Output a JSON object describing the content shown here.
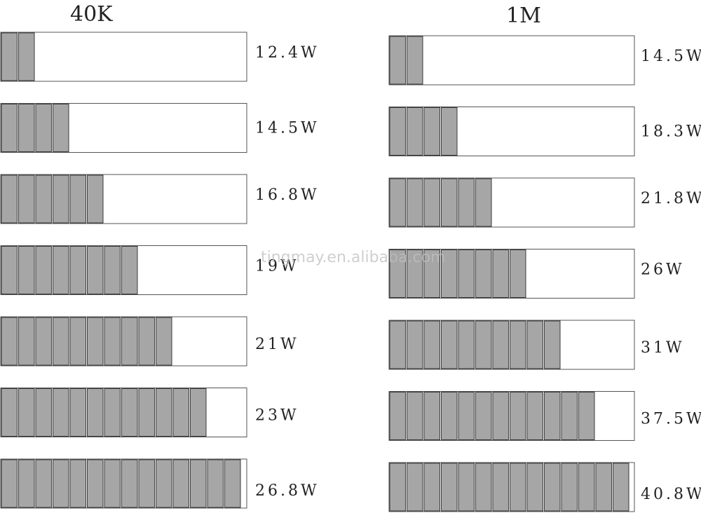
{
  "watermark": "tingmay.en.alibaba.com",
  "groups": [
    {
      "title": "40K",
      "rows": [
        {
          "label": "12.4W",
          "lit": 2,
          "total": 14
        },
        {
          "label": "14.5W",
          "lit": 4,
          "total": 14
        },
        {
          "label": "16.8W",
          "lit": 6,
          "total": 14
        },
        {
          "label": "19W",
          "lit": 8,
          "total": 14
        },
        {
          "label": "21W",
          "lit": 10,
          "total": 14
        },
        {
          "label": "23W",
          "lit": 12,
          "total": 14
        },
        {
          "label": "26.8W",
          "lit": 14,
          "total": 14
        }
      ]
    },
    {
      "title": "1M",
      "rows": [
        {
          "label": "14.5W",
          "lit": 2,
          "total": 14
        },
        {
          "label": "18.3W",
          "lit": 4,
          "total": 14
        },
        {
          "label": "21.8W",
          "lit": 6,
          "total": 14
        },
        {
          "label": "26W",
          "lit": 8,
          "total": 14
        },
        {
          "label": "31W",
          "lit": 10,
          "total": 14
        },
        {
          "label": "37.5W",
          "lit": 12,
          "total": 14
        },
        {
          "label": "40.8W",
          "lit": 14,
          "total": 14
        }
      ]
    }
  ]
}
